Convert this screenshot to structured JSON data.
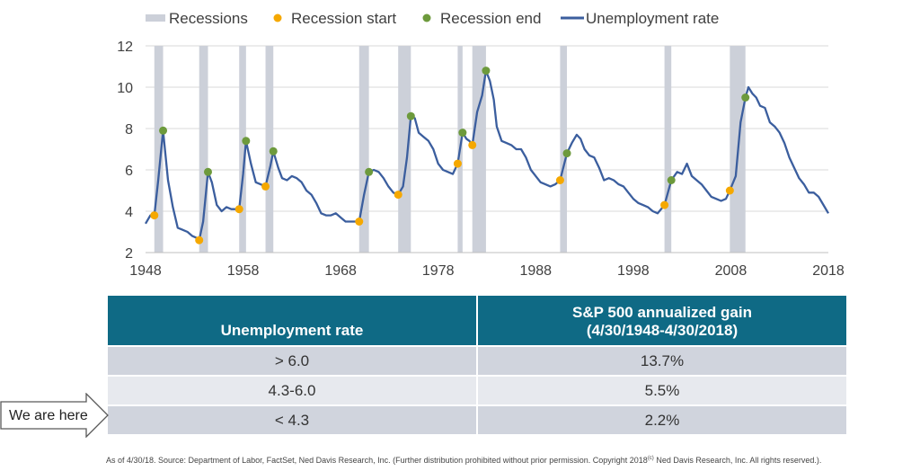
{
  "chart_data": {
    "type": "line",
    "legend": {
      "placement": "top",
      "items": [
        {
          "label": "Recessions",
          "kind": "bar",
          "color": "#ccd0d9"
        },
        {
          "label": "Recession start",
          "kind": "dot",
          "color": "#f5a800"
        },
        {
          "label": "Recession end",
          "kind": "dot",
          "color": "#6d9a3c"
        },
        {
          "label": "Unemployment rate",
          "kind": "line",
          "color": "#3b5e9e"
        }
      ]
    },
    "x_range": [
      1948,
      2018
    ],
    "y_range": [
      2,
      12
    ],
    "x_ticks": [
      1948,
      1958,
      1968,
      1978,
      1988,
      1998,
      2008,
      2018
    ],
    "y_ticks": [
      2,
      4,
      6,
      8,
      10,
      12
    ],
    "grid": "horizontal",
    "recessions": [
      [
        1948.9,
        1949.8
      ],
      [
        1953.5,
        1954.4
      ],
      [
        1957.6,
        1958.3
      ],
      [
        1960.3,
        1961.1
      ],
      [
        1969.9,
        1970.9
      ],
      [
        1973.9,
        1975.2
      ],
      [
        1980.0,
        1980.5
      ],
      [
        1981.5,
        1982.9
      ],
      [
        1990.5,
        1991.2
      ],
      [
        2001.2,
        2001.9
      ],
      [
        2007.9,
        2009.5
      ]
    ],
    "recession_start": [
      [
        1948.9,
        3.8
      ],
      [
        1953.5,
        2.6
      ],
      [
        1957.6,
        4.1
      ],
      [
        1960.3,
        5.2
      ],
      [
        1969.9,
        3.5
      ],
      [
        1973.9,
        4.8
      ],
      [
        1980.0,
        6.3
      ],
      [
        1981.5,
        7.2
      ],
      [
        1990.5,
        5.5
      ],
      [
        2001.2,
        4.3
      ],
      [
        2007.9,
        5.0
      ]
    ],
    "recession_end": [
      [
        1949.8,
        7.9
      ],
      [
        1954.4,
        5.9
      ],
      [
        1958.3,
        7.4
      ],
      [
        1961.1,
        6.9
      ],
      [
        1970.9,
        5.9
      ],
      [
        1975.2,
        8.6
      ],
      [
        1980.5,
        7.8
      ],
      [
        1982.9,
        10.8
      ],
      [
        1991.2,
        6.8
      ],
      [
        2001.9,
        5.5
      ],
      [
        2009.5,
        9.5
      ]
    ],
    "series": [
      {
        "name": "Unemployment rate",
        "x": [
          1948.0,
          1948.5,
          1948.9,
          1949.3,
          1949.8,
          1950.3,
          1950.8,
          1951.3,
          1951.8,
          1952.3,
          1952.8,
          1953.3,
          1953.5,
          1953.9,
          1954.4,
          1954.8,
          1955.3,
          1955.8,
          1956.3,
          1956.8,
          1957.3,
          1957.6,
          1958.0,
          1958.3,
          1958.8,
          1959.3,
          1959.8,
          1960.3,
          1960.8,
          1961.1,
          1961.6,
          1962.0,
          1962.5,
          1963.0,
          1963.5,
          1964.0,
          1964.5,
          1965.0,
          1965.5,
          1966.0,
          1966.5,
          1967.0,
          1967.5,
          1968.0,
          1968.5,
          1969.0,
          1969.5,
          1969.9,
          1970.4,
          1970.9,
          1971.4,
          1971.9,
          1972.4,
          1972.9,
          1973.4,
          1973.9,
          1974.4,
          1974.8,
          1975.2,
          1975.6,
          1976.0,
          1976.5,
          1977.0,
          1977.5,
          1978.0,
          1978.5,
          1979.0,
          1979.5,
          1980.0,
          1980.5,
          1980.9,
          1981.2,
          1981.5,
          1982.0,
          1982.5,
          1982.9,
          1983.3,
          1983.7,
          1984.0,
          1984.5,
          1985.0,
          1985.5,
          1986.0,
          1986.5,
          1987.0,
          1987.5,
          1988.0,
          1988.5,
          1989.0,
          1989.5,
          1990.0,
          1990.5,
          1991.2,
          1991.7,
          1992.2,
          1992.6,
          1993.0,
          1993.5,
          1994.0,
          1994.5,
          1995.0,
          1995.5,
          1996.0,
          1996.5,
          1997.0,
          1997.5,
          1998.0,
          1998.5,
          1999.0,
          1999.5,
          2000.0,
          2000.5,
          2001.2,
          2001.9,
          2002.5,
          2003.0,
          2003.5,
          2004.0,
          2004.5,
          2005.0,
          2005.5,
          2006.0,
          2006.5,
          2007.0,
          2007.5,
          2007.9,
          2008.5,
          2009.0,
          2009.5,
          2009.8,
          2010.2,
          2010.6,
          2011.0,
          2011.5,
          2012.0,
          2012.5,
          2013.0,
          2013.5,
          2014.0,
          2014.5,
          2015.0,
          2015.5,
          2016.0,
          2016.5,
          2017.0,
          2017.5,
          2018.0
        ],
        "y": [
          3.4,
          3.8,
          3.8,
          5.5,
          7.9,
          5.5,
          4.2,
          3.2,
          3.1,
          3.0,
          2.8,
          2.7,
          2.6,
          3.5,
          5.9,
          5.4,
          4.3,
          4.0,
          4.2,
          4.1,
          4.1,
          4.1,
          5.8,
          7.4,
          6.3,
          5.4,
          5.3,
          5.2,
          6.2,
          6.9,
          6.1,
          5.6,
          5.5,
          5.7,
          5.6,
          5.4,
          5.0,
          4.8,
          4.4,
          3.9,
          3.8,
          3.8,
          3.9,
          3.7,
          3.5,
          3.5,
          3.5,
          3.5,
          4.8,
          5.9,
          6.0,
          5.9,
          5.6,
          5.2,
          4.9,
          4.8,
          5.2,
          6.6,
          8.6,
          8.5,
          7.8,
          7.6,
          7.4,
          7.0,
          6.3,
          6.0,
          5.9,
          5.8,
          6.3,
          7.8,
          7.5,
          7.4,
          7.2,
          8.8,
          9.6,
          10.8,
          10.3,
          9.4,
          8.1,
          7.4,
          7.3,
          7.2,
          7.0,
          7.0,
          6.6,
          6.0,
          5.7,
          5.4,
          5.3,
          5.2,
          5.3,
          5.5,
          6.8,
          7.3,
          7.7,
          7.5,
          7.0,
          6.7,
          6.6,
          6.1,
          5.5,
          5.6,
          5.5,
          5.3,
          5.2,
          4.9,
          4.6,
          4.4,
          4.3,
          4.2,
          4.0,
          3.9,
          4.3,
          5.5,
          5.9,
          5.8,
          6.3,
          5.7,
          5.5,
          5.3,
          5.0,
          4.7,
          4.6,
          4.5,
          4.6,
          5.0,
          5.7,
          8.3,
          9.5,
          10.0,
          9.7,
          9.5,
          9.1,
          9.0,
          8.3,
          8.1,
          7.8,
          7.3,
          6.6,
          6.1,
          5.6,
          5.3,
          4.9,
          4.9,
          4.7,
          4.3,
          3.9
        ]
      }
    ]
  },
  "table": {
    "headers": [
      {
        "lines": [
          "Unemployment  rate"
        ]
      },
      {
        "lines": [
          "S&P 500 annualized gain",
          "(4/30/1948-4/30/2018)"
        ]
      }
    ],
    "rows": [
      {
        "rate": "> 6.0",
        "gain": "13.7%"
      },
      {
        "rate": "4.3-6.0",
        "gain": "5.5%"
      },
      {
        "rate": "< 4.3",
        "gain": "2.2%"
      }
    ],
    "header_color": "#0f6a85"
  },
  "callout": {
    "label": "We are here"
  },
  "footnote": {
    "before": "As of  4/30/18. Source: Department of Labor, FactSet, Ned Davis Research, Inc. (Further distribution prohibited without prior permission. Copyright 2018",
    "mark": "(c)",
    "after": " Ned Davis Research, Inc. All rights reserved.)."
  }
}
